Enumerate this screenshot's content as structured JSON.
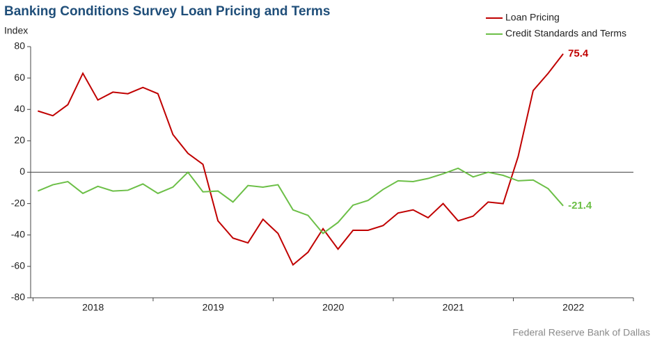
{
  "chart_data": {
    "type": "line",
    "title": "Banking Conditions Survey Loan Pricing and Terms",
    "y_label": "Index",
    "source": "Federal Reserve Bank of Dallas",
    "x": [
      2018.04,
      2018.165,
      2018.29,
      2018.415,
      2018.54,
      2018.665,
      2018.79,
      2018.915,
      2019.04,
      2019.165,
      2019.29,
      2019.415,
      2019.54,
      2019.665,
      2019.79,
      2019.915,
      2020.04,
      2020.165,
      2020.29,
      2020.415,
      2020.54,
      2020.665,
      2020.79,
      2020.915,
      2021.04,
      2021.165,
      2021.29,
      2021.415,
      2021.54,
      2021.665,
      2021.79,
      2021.915,
      2022.04,
      2022.165,
      2022.29,
      2022.415
    ],
    "series": [
      {
        "name": "Loan Pricing",
        "color": "#c00000",
        "values": [
          39,
          36,
          43,
          63,
          46,
          51,
          50,
          54,
          50,
          24,
          12,
          5,
          -31,
          -42,
          -45,
          -30,
          -39,
          -59,
          -51,
          -36,
          -49,
          -37,
          -37,
          -34,
          -26,
          -24,
          -29,
          -20,
          -31,
          -28,
          -19,
          -20,
          10,
          52,
          63,
          75.4
        ]
      },
      {
        "name": "Credit Standards and Terms",
        "color": "#6cbf47",
        "values": [
          -12,
          -8,
          -6,
          -13.5,
          -9,
          -12,
          -11.5,
          -7.5,
          -13.5,
          -9.5,
          0,
          -12.5,
          -12,
          -19,
          -8.5,
          -9.5,
          -8,
          -24,
          -27.5,
          -39,
          -32,
          -21,
          -18,
          -11,
          -5.5,
          -6,
          -4,
          -1,
          2.5,
          -3,
          0,
          -2,
          -5.5,
          -5,
          -10.5,
          -21.4
        ]
      }
    ],
    "label_last": true,
    "xlim": [
      2017.98,
      2023
    ],
    "xticks": [
      {
        "value": 2018.5,
        "label": "2018"
      },
      {
        "value": 2019.5,
        "label": "2019"
      },
      {
        "value": 2020.5,
        "label": "2020"
      },
      {
        "value": 2021.5,
        "label": "2021"
      },
      {
        "value": 2022.5,
        "label": "2022"
      }
    ],
    "x_minor_ticks": [
      2018,
      2019,
      2020,
      2021,
      2022,
      2023
    ],
    "ylim": [
      -80,
      80
    ],
    "yticks": [
      80,
      60,
      40,
      20,
      0,
      -20,
      -40,
      -60,
      -80
    ],
    "legend": "top-right",
    "grid": false
  }
}
